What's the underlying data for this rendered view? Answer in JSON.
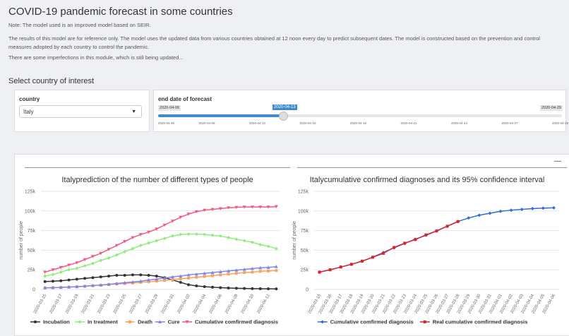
{
  "header": {
    "title": "COVID-19 pandemic forecast in some countries",
    "notes": [
      "Note: The model used is an improved model based on SEIR.",
      "The results of this model are for reference only. The model uses the updated data from various countries obtained at 12 noon every day to predict subsequent dates. The model is constructed based on the prevention and control measures adopted by each country to control the pandemic.",
      "There are some imperfections in this module, which is still being updated..."
    ]
  },
  "section_label": "Select country of interest",
  "country": {
    "label": "country",
    "value": "Italy"
  },
  "slider": {
    "label": "end date of forecast",
    "min_label": "2020-04-06",
    "current_label": "2020-04-13",
    "max_label": "2020-04-29",
    "ticks": [
      "2020-04-06",
      "2020-04-09",
      "2020-04-12",
      "2020-04-15",
      "2020-04-18",
      "2020-04-21",
      "2020-04-24",
      "2020-04-27",
      "2020-04-29"
    ]
  },
  "minimize": "—",
  "chart_data": [
    {
      "type": "line",
      "title": "Italyprediction of the number of different types of people",
      "y_label": "number of people",
      "grid": true,
      "categories": [
        "2020-03-15",
        null,
        "2020-03-17",
        null,
        "2020-03-19",
        null,
        "2020-03-21",
        null,
        "2020-03-23",
        null,
        "2020-03-25",
        null,
        "2020-03-27",
        null,
        "2020-03-29",
        null,
        "2020-03-31",
        null,
        "2020-04-02",
        null,
        "2020-04-04",
        null,
        "2020-04-06",
        null,
        "2020-04-08",
        null,
        "2020-04-10",
        null,
        "2020-04-12",
        null
      ],
      "ylim": [
        0,
        125000
      ],
      "yticks": [
        0,
        {
          "value": 25000,
          "label": "25k"
        },
        {
          "value": 50000,
          "label": "50k"
        },
        {
          "value": 75000,
          "label": "75k"
        },
        {
          "value": 100000,
          "label": "100k"
        },
        {
          "value": 125000,
          "label": "125k"
        }
      ],
      "series": [
        {
          "name": "Incubation",
          "color": "#333333",
          "marker": "circle",
          "values": [
            10000,
            10500,
            11000,
            12000,
            13000,
            14000,
            15000,
            16000,
            17000,
            18000,
            18000,
            18500,
            18500,
            18000,
            17000,
            15000,
            12000,
            9000,
            6000,
            4500,
            3500,
            2800,
            2200,
            1800,
            1500,
            1200,
            1000,
            900,
            800,
            700
          ]
        },
        {
          "name": "In treatment",
          "color": "#90ed7d",
          "marker": "diamond",
          "values": [
            17000,
            19000,
            22000,
            25000,
            27000,
            30000,
            33000,
            37000,
            40000,
            44000,
            48000,
            52000,
            56000,
            59000,
            62000,
            65000,
            68000,
            70000,
            70500,
            70500,
            70000,
            69000,
            68000,
            66000,
            64000,
            62000,
            60000,
            57000,
            55000,
            52000
          ]
        },
        {
          "name": "Death",
          "color": "#f7a35c",
          "marker": "square",
          "values": [
            2000,
            2200,
            2500,
            3000,
            3400,
            4000,
            4800,
            5500,
            6200,
            7000,
            7500,
            8200,
            9000,
            9800,
            10500,
            11500,
            12500,
            13500,
            14500,
            15500,
            16500,
            17500,
            18500,
            19500,
            20500,
            21500,
            22000,
            23000,
            23500,
            24000
          ]
        },
        {
          "name": "Cure",
          "color": "#8085e9",
          "marker": "triangle",
          "values": [
            2000,
            2300,
            2600,
            3000,
            3500,
            4200,
            5000,
            5500,
            6500,
            7500,
            8500,
            9500,
            10500,
            12000,
            13000,
            14500,
            16000,
            17000,
            18500,
            19500,
            20500,
            21500,
            22500,
            23500,
            24500,
            25500,
            26500,
            27500,
            28000,
            29000
          ]
        },
        {
          "name": "Cumulative comfirmed diagnosis",
          "color": "#f15c80",
          "marker": "triangle-down",
          "values": [
            22000,
            25000,
            28000,
            31000,
            34000,
            38000,
            42000,
            46000,
            51000,
            56000,
            61000,
            66000,
            70000,
            73000,
            77000,
            82000,
            87000,
            92000,
            96000,
            99000,
            101000,
            102000,
            103000,
            104000,
            104500,
            105000,
            105000,
            105000,
            105000,
            105500
          ]
        }
      ]
    },
    {
      "type": "line",
      "title": "Italycumulative confirmed diagnoses and its 95% confidence interval",
      "y_label": "number of people",
      "grid": true,
      "categories": [
        "2020-03-15",
        "2020-03-16",
        "2020-03-17",
        "2020-03-18",
        "2020-03-19",
        "2020-03-20",
        "2020-03-21",
        "2020-03-22",
        "2020-03-23",
        "2020-03-24",
        "2020-03-25",
        "2020-03-26",
        "2020-03-27",
        "2020-03-28",
        "2020-03-29",
        "2020-03-30",
        "2020-03-31",
        "2020-04-01",
        "2020-04-02",
        "2020-04-03",
        "2020-04-04",
        "2020-04-05",
        "2020-04-06"
      ],
      "ylim": [
        0,
        125000
      ],
      "yticks": [
        0,
        {
          "value": 25000,
          "label": "25k"
        },
        {
          "value": 50000,
          "label": "50k"
        },
        {
          "value": 75000,
          "label": "75k"
        },
        {
          "value": 100000,
          "label": "100k"
        },
        {
          "value": 125000,
          "label": "125k"
        }
      ],
      "series": [
        {
          "name": "Cumulative comfirmed diagnosis",
          "color": "#2f6fd0",
          "marker": "diamond",
          "values": [
            22000,
            25000,
            28500,
            32000,
            36000,
            41000,
            47000,
            53000,
            58500,
            64000,
            69000,
            74500,
            80500,
            86500,
            91000,
            94500,
            97000,
            99500,
            101000,
            102000,
            103000,
            103500,
            104000
          ]
        },
        {
          "name": "Real cumulative comfirmed diagnosis",
          "color": "#d7262b",
          "marker": "square",
          "values": [
            22000,
            25000,
            28500,
            32000,
            36000,
            41000,
            46000,
            53500,
            59000,
            63500,
            69500,
            74500,
            80500,
            86500,
            null,
            null,
            null,
            null,
            null,
            null,
            null,
            null,
            null
          ]
        }
      ]
    }
  ]
}
